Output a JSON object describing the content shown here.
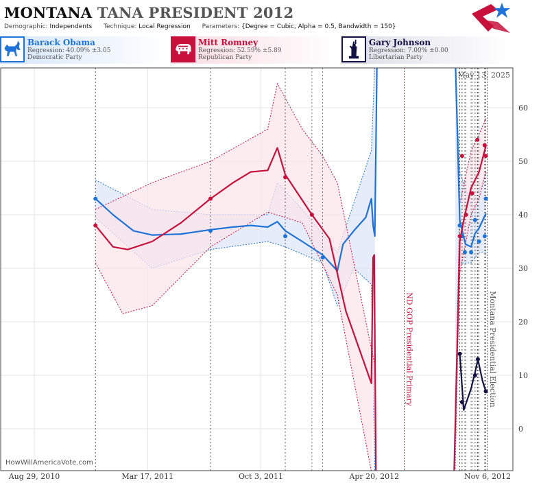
{
  "header": {
    "title_state": "MONTANA",
    "title_rest": "TANA PRESIDENT 2012",
    "demographic_label": "Demographic:",
    "demographic_value": "Independents",
    "technique_label": "Technique:",
    "technique_value": "Local Regression",
    "parameters_label": "Parameters:",
    "parameters_value": "{Degree = Cubic, Alpha = 0.5, Bandwidth = 150}"
  },
  "legend": [
    {
      "name": "Barack Obama",
      "regression": "Regression: 40.09% ±3.05",
      "party": "Democratic Party",
      "color": "#1e73d8",
      "icon": "donkey-icon"
    },
    {
      "name": "Mitt Romney",
      "regression": "Regression: 52.59% ±5.89",
      "party": "Republican Party",
      "color": "#c8103c",
      "icon": "elephant-icon"
    },
    {
      "name": "Gary Johnson",
      "regression": "Regression: 7.00% ±0.00",
      "party": "Libertarian Party",
      "color": "#111144",
      "icon": "statue-of-liberty-icon"
    }
  ],
  "credit": "HowWillAmericaVote.com",
  "chart_data": {
    "type": "line",
    "date_label": "May 13, 2025",
    "x_ticks": [
      "Aug 29, 2010",
      "Mar 17, 2011",
      "Oct 3, 2011",
      "Apr 20, 2012",
      "Nov 6, 2012"
    ],
    "y_ticks": [
      0,
      10,
      20,
      30,
      40,
      50,
      60
    ],
    "ylim": [
      -8,
      68
    ],
    "xlim": [
      "2010-08-29",
      "2012-11-30"
    ],
    "events": [
      {
        "label": "ND GOP Presidential Primary",
        "date": "2012-06-12",
        "color": "#c8103c"
      },
      {
        "label": "Montana Presidential Election",
        "date": "2012-11-06",
        "color": "#555555"
      }
    ],
    "series": [
      {
        "name": "Barack Obama",
        "color": "#1e73d8",
        "band_color": "#dde6f7",
        "points": [
          [
            "2010-12-15",
            43
          ],
          [
            "2011-07-06",
            37
          ],
          [
            "2011-11-15",
            36
          ],
          [
            "2012-01-20",
            32
          ],
          [
            "2012-09-18",
            38
          ],
          [
            "2012-09-22",
            36
          ],
          [
            "2012-09-27",
            33
          ],
          [
            "2012-10-08",
            33
          ],
          [
            "2012-10-15",
            39
          ],
          [
            "2012-10-22",
            35
          ],
          [
            "2012-11-01",
            36
          ],
          [
            "2012-11-03",
            43
          ]
        ],
        "trend": [
          [
            "2010-12-15",
            43
          ],
          [
            "2011-01-15",
            40
          ],
          [
            "2011-02-20",
            37
          ],
          [
            "2011-03-25",
            36.2
          ],
          [
            "2011-05-15",
            36.4
          ],
          [
            "2011-07-06",
            37.2
          ],
          [
            "2011-08-15",
            37.7
          ],
          [
            "2011-09-15",
            38
          ],
          [
            "2011-10-15",
            37.7
          ],
          [
            "2011-11-01",
            38.7
          ],
          [
            "2011-11-15",
            37
          ],
          [
            "2011-12-15",
            35
          ],
          [
            "2012-01-20",
            32.5
          ],
          [
            "2012-02-15",
            29.5
          ],
          [
            "2012-02-25",
            34.5
          ],
          [
            "2012-03-15",
            37
          ],
          [
            "2012-04-05",
            39.5
          ],
          [
            "2012-04-15",
            43
          ],
          [
            "2012-04-18",
            38
          ],
          [
            "2012-04-21",
            36
          ],
          [
            "2012-04-25",
            70
          ]
        ],
        "trend_late": [
          [
            "2012-09-10",
            70
          ],
          [
            "2012-09-18",
            39
          ],
          [
            "2012-09-28",
            34.5
          ],
          [
            "2012-10-08",
            34
          ],
          [
            "2012-10-15",
            36.5
          ],
          [
            "2012-10-22",
            37.5
          ],
          [
            "2012-11-03",
            40.2
          ]
        ],
        "band_upper": [
          [
            "2010-12-15",
            46.5
          ],
          [
            "2011-03-25",
            41
          ],
          [
            "2011-07-06",
            40
          ],
          [
            "2011-10-15",
            40
          ],
          [
            "2011-11-01",
            46
          ],
          [
            "2011-12-15",
            41
          ],
          [
            "2012-02-15",
            33
          ],
          [
            "2012-04-15",
            52
          ],
          [
            "2012-04-21",
            68
          ]
        ],
        "band_lower": [
          [
            "2010-12-15",
            39.5
          ],
          [
            "2011-03-25",
            30
          ],
          [
            "2011-07-06",
            33.5
          ],
          [
            "2011-10-15",
            35
          ],
          [
            "2011-11-15",
            34
          ],
          [
            "2012-01-20",
            31
          ],
          [
            "2012-02-15",
            23
          ],
          [
            "2012-03-15",
            30
          ],
          [
            "2012-04-15",
            27
          ],
          [
            "2012-04-21",
            -8
          ]
        ],
        "band_late_upper": [
          [
            "2012-09-10",
            68
          ],
          [
            "2012-09-18",
            48
          ],
          [
            "2012-10-08",
            42
          ],
          [
            "2012-10-22",
            44.5
          ],
          [
            "2012-11-03",
            48
          ]
        ],
        "band_late_lower": [
          [
            "2012-09-10",
            -8
          ],
          [
            "2012-09-18",
            31
          ],
          [
            "2012-10-08",
            31
          ],
          [
            "2012-10-22",
            33
          ],
          [
            "2012-11-03",
            33
          ]
        ]
      },
      {
        "name": "Mitt Romney",
        "color": "#c8103c",
        "band_color": "#fbe4ea",
        "points": [
          [
            "2010-12-15",
            38
          ],
          [
            "2011-07-06",
            43
          ],
          [
            "2011-11-15",
            47
          ],
          [
            "2012-01-01",
            40
          ],
          [
            "2012-09-18",
            36
          ],
          [
            "2012-09-22",
            51
          ],
          [
            "2012-09-29",
            40
          ],
          [
            "2012-10-10",
            44
          ],
          [
            "2012-10-19",
            54
          ],
          [
            "2012-11-01",
            53
          ],
          [
            "2012-11-03",
            51
          ]
        ],
        "trend": [
          [
            "2010-12-15",
            38
          ],
          [
            "2011-01-15",
            34
          ],
          [
            "2011-02-10",
            33.5
          ],
          [
            "2011-03-25",
            35
          ],
          [
            "2011-05-15",
            38.5
          ],
          [
            "2011-07-06",
            43
          ],
          [
            "2011-08-15",
            46
          ],
          [
            "2011-09-15",
            48
          ],
          [
            "2011-10-15",
            48.3
          ],
          [
            "2011-11-01",
            52.5
          ],
          [
            "2011-11-15",
            47.5
          ],
          [
            "2012-01-01",
            40
          ],
          [
            "2012-02-01",
            35.5
          ],
          [
            "2012-03-01",
            22
          ],
          [
            "2012-04-15",
            8.5
          ],
          [
            "2012-04-18",
            32
          ],
          [
            "2012-04-20",
            32.5
          ],
          [
            "2012-04-23",
            -8
          ]
        ],
        "trend_late": [
          [
            "2012-09-08",
            -8
          ],
          [
            "2012-09-18",
            35
          ],
          [
            "2012-09-25",
            39
          ],
          [
            "2012-10-08",
            45
          ],
          [
            "2012-10-22",
            48
          ],
          [
            "2012-11-03",
            52.8
          ]
        ],
        "band_upper": [
          [
            "2010-12-15",
            41
          ],
          [
            "2011-03-25",
            46
          ],
          [
            "2011-07-06",
            50
          ],
          [
            "2011-10-15",
            56
          ],
          [
            "2011-11-01",
            64.5
          ],
          [
            "2011-12-15",
            56
          ],
          [
            "2012-01-20",
            51
          ],
          [
            "2012-02-15",
            46
          ],
          [
            "2012-04-15",
            15
          ],
          [
            "2012-04-21",
            12
          ]
        ],
        "band_lower": [
          [
            "2010-12-15",
            31
          ],
          [
            "2011-02-01",
            21.5
          ],
          [
            "2011-03-25",
            23
          ],
          [
            "2011-07-06",
            34
          ],
          [
            "2011-10-15",
            40.5
          ],
          [
            "2011-12-15",
            38.5
          ],
          [
            "2012-02-15",
            25
          ],
          [
            "2012-04-15",
            -8
          ]
        ],
        "band_late_upper": [
          [
            "2012-09-08",
            -8
          ],
          [
            "2012-09-18",
            42
          ],
          [
            "2012-10-08",
            52
          ],
          [
            "2012-10-22",
            55
          ],
          [
            "2012-11-03",
            58
          ]
        ],
        "band_late_lower": [
          [
            "2012-09-08",
            -8
          ],
          [
            "2012-09-18",
            29
          ],
          [
            "2012-10-08",
            40
          ],
          [
            "2012-10-22",
            43
          ],
          [
            "2012-11-03",
            48
          ]
        ]
      },
      {
        "name": "Gary Johnson",
        "color": "#111144",
        "band_color": "#e6e6ee",
        "points": [
          [
            "2012-09-18",
            14
          ],
          [
            "2012-09-22",
            5
          ],
          [
            "2012-10-15",
            10
          ],
          [
            "2012-10-20",
            13
          ],
          [
            "2012-11-03",
            7
          ]
        ],
        "trend": [
          [
            "2012-09-18",
            14
          ],
          [
            "2012-09-25",
            3.5
          ],
          [
            "2012-10-08",
            7.5
          ],
          [
            "2012-10-15",
            10.5
          ],
          [
            "2012-10-20",
            13
          ],
          [
            "2012-10-28",
            9
          ],
          [
            "2012-11-03",
            7
          ]
        ]
      }
    ]
  }
}
